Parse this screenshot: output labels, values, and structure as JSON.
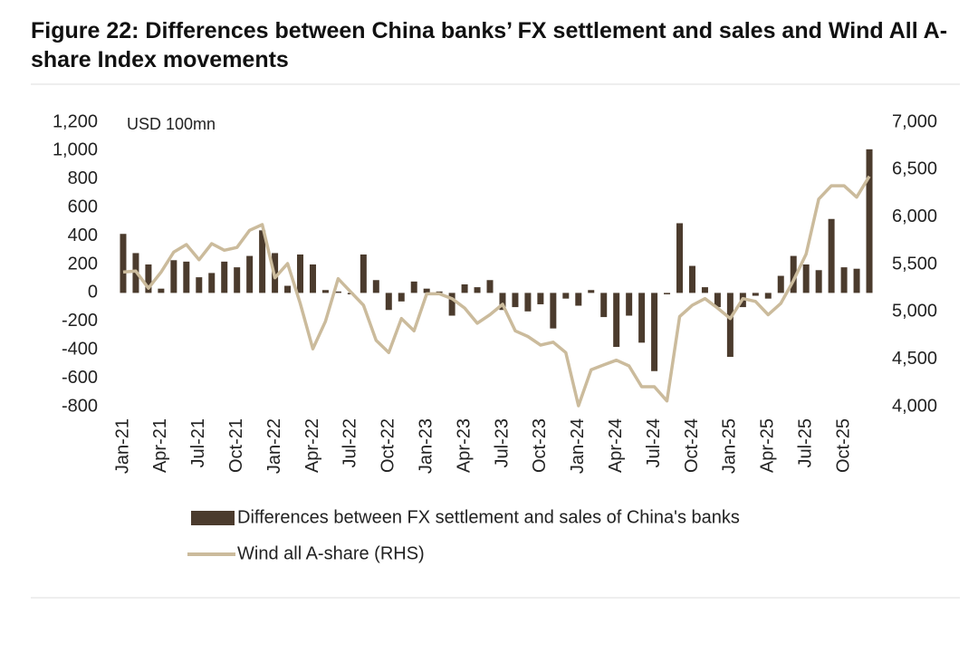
{
  "chart_data": {
    "type": "bar_line",
    "title": "Figure 22: Differences between China banks’ FX settlement and sales and Wind All A-share Index movements",
    "y_label": "USD 100mn",
    "categories": [
      "Jan-21",
      null,
      null,
      "Apr-21",
      null,
      null,
      "Jul-21",
      null,
      null,
      "Oct-21",
      null,
      null,
      "Jan-22",
      null,
      null,
      "Apr-22",
      null,
      null,
      "Jul-22",
      null,
      null,
      "Oct-22",
      null,
      null,
      "Jan-23",
      null,
      null,
      "Apr-23",
      null,
      null,
      "Jul-23",
      null,
      null,
      "Oct-23",
      null,
      null,
      "Jan-24",
      null,
      null,
      "Apr-24",
      null,
      null,
      "Jul-24",
      null,
      null,
      "Oct-24",
      null,
      null,
      "Jan-25",
      null,
      null,
      "Apr-25",
      null,
      null,
      "Jul-25",
      null,
      null,
      "Oct-25",
      null,
      null
    ],
    "series": [
      {
        "name": "Differences between FX settlement and sales of China's banks",
        "type": "bar",
        "color": "#4b3b2d",
        "values": [
          415,
          280,
          200,
          30,
          230,
          220,
          110,
          140,
          220,
          180,
          260,
          440,
          280,
          50,
          270,
          200,
          20,
          10,
          -10,
          270,
          90,
          -120,
          -60,
          80,
          30,
          10,
          -160,
          60,
          40,
          90,
          -120,
          -100,
          -130,
          -80,
          -250,
          -40,
          -90,
          20,
          -170,
          -380,
          -160,
          -350,
          -550,
          -10,
          490,
          190,
          40,
          -100,
          -450,
          -100,
          -20,
          -40,
          120,
          260,
          200,
          160,
          520,
          180,
          170,
          1010
        ]
      },
      {
        "name": "Wind all A-share (RHS)",
        "type": "line",
        "axis": "y2",
        "color": "#cbbb9c",
        "values": [
          5420,
          5430,
          5250,
          5420,
          5630,
          5710,
          5550,
          5720,
          5650,
          5680,
          5860,
          5920,
          5360,
          5510,
          5090,
          4610,
          4900,
          5350,
          5210,
          5070,
          4700,
          4570,
          4930,
          4800,
          5190,
          5190,
          5140,
          5040,
          4880,
          4970,
          5080,
          4800,
          4740,
          4650,
          4680,
          4570,
          4010,
          4390,
          4440,
          4490,
          4430,
          4210,
          4210,
          4060,
          4950,
          5070,
          5140,
          5040,
          4930,
          5140,
          5110,
          4970,
          5090,
          5330,
          5610,
          6190,
          6330,
          6330,
          6210,
          6430
        ]
      }
    ],
    "ylim": [
      -800,
      1200
    ],
    "yticks": [
      {
        "value": 1200,
        "label": "1,200"
      },
      {
        "value": 1000,
        "label": "1,000"
      },
      800,
      600,
      400,
      200,
      0,
      -200,
      -400,
      -600,
      -800
    ],
    "y2lim": [
      4000,
      7000
    ],
    "y2ticks": [
      {
        "value": 7000,
        "label": "7,000"
      },
      {
        "value": 6500,
        "label": "6,500"
      },
      {
        "value": 6000,
        "label": "6,000"
      },
      {
        "value": 5500,
        "label": "5,500"
      },
      {
        "value": 5000,
        "label": "5,000"
      },
      {
        "value": 4500,
        "label": "4,500"
      },
      {
        "value": 4000,
        "label": "4,000"
      }
    ],
    "grid": false
  }
}
